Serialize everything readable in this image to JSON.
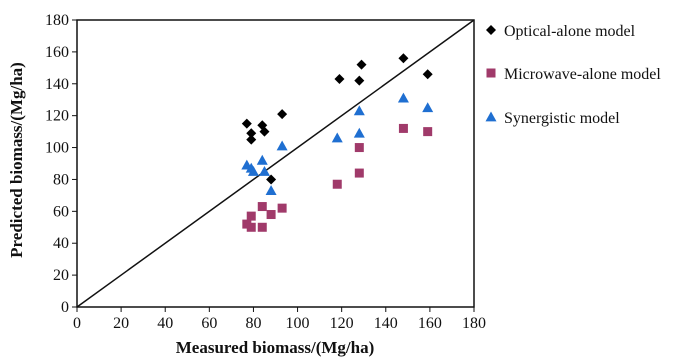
{
  "chart_data": {
    "type": "scatter",
    "xlabel": "Measured biomass/(Mg/ha)",
    "ylabel": "Predicted biomass/(Mg/ha)",
    "xlim": [
      0,
      180
    ],
    "ylim": [
      0,
      180
    ],
    "x_ticks": [
      0,
      20,
      40,
      60,
      80,
      100,
      120,
      140,
      160,
      180
    ],
    "y_ticks": [
      0,
      20,
      40,
      60,
      80,
      100,
      120,
      140,
      160,
      180
    ],
    "grid": false,
    "legend_position": "right",
    "reference_line": {
      "type": "1:1 line",
      "from": [
        0,
        0
      ],
      "to": [
        180,
        180
      ]
    },
    "series": [
      {
        "name": "Optical-alone model",
        "marker": "diamond",
        "color": "#000000",
        "points": [
          [
            77,
            115
          ],
          [
            79,
            109
          ],
          [
            79,
            105
          ],
          [
            84,
            114
          ],
          [
            85,
            110
          ],
          [
            88,
            80
          ],
          [
            93,
            121
          ],
          [
            119,
            143
          ],
          [
            128,
            142
          ],
          [
            129,
            152
          ],
          [
            148,
            156
          ],
          [
            159,
            146
          ]
        ]
      },
      {
        "name": "Microwave-alone model",
        "marker": "square",
        "color": "#a03a6a",
        "points": [
          [
            77,
            52
          ],
          [
            79,
            57
          ],
          [
            79,
            50
          ],
          [
            84,
            63
          ],
          [
            84,
            50
          ],
          [
            88,
            58
          ],
          [
            93,
            62
          ],
          [
            118,
            77
          ],
          [
            128,
            84
          ],
          [
            128,
            100
          ],
          [
            148,
            112
          ],
          [
            159,
            110
          ]
        ]
      },
      {
        "name": "Synergistic model",
        "marker": "triangle",
        "color": "#1f6fd1",
        "points": [
          [
            77,
            89
          ],
          [
            79,
            87
          ],
          [
            80,
            85
          ],
          [
            84,
            92
          ],
          [
            85,
            85
          ],
          [
            88,
            73
          ],
          [
            93,
            101
          ],
          [
            118,
            106
          ],
          [
            128,
            109
          ],
          [
            128,
            123
          ],
          [
            148,
            131
          ],
          [
            159,
            125
          ]
        ]
      }
    ]
  }
}
